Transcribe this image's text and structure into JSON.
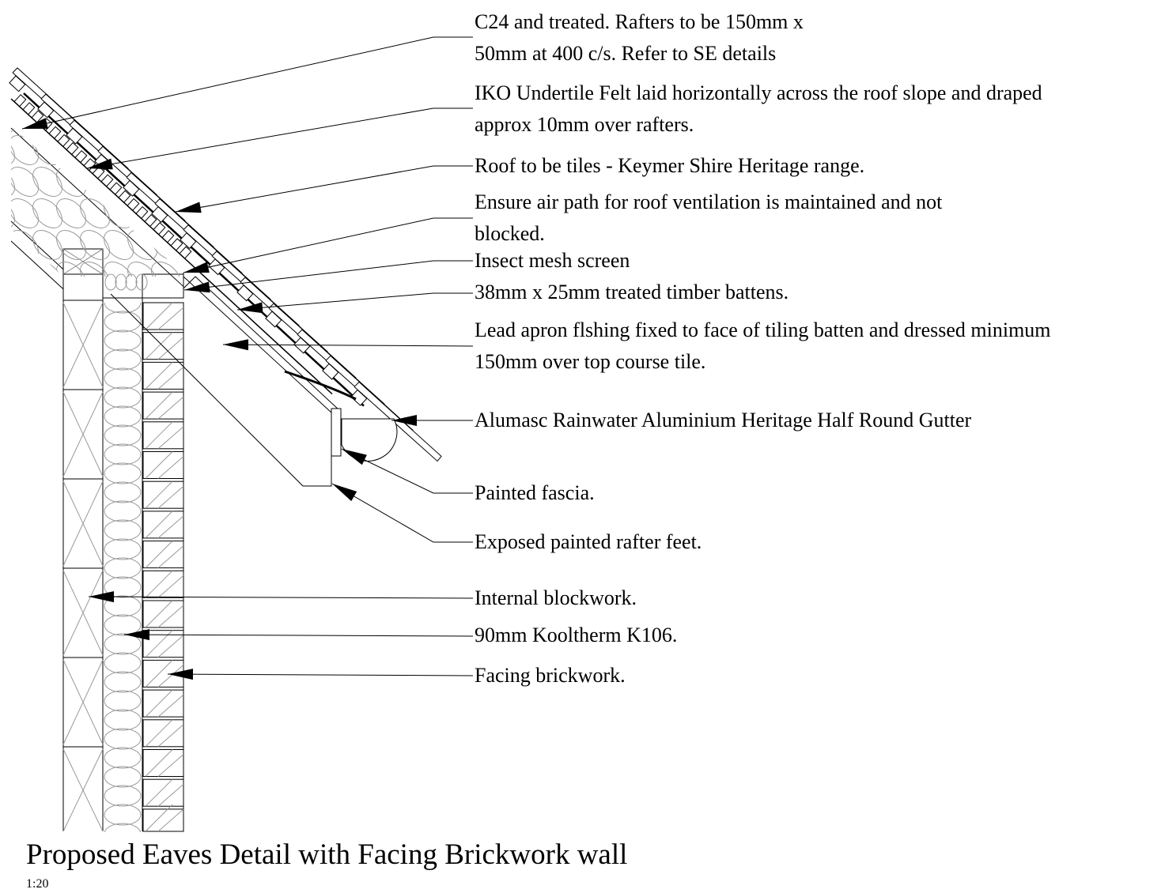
{
  "title": "Proposed Eaves Detail with Facing Brickwork wall",
  "scale": "1:20",
  "annotations": [
    {
      "id": "rafters",
      "lines": [
        "C24 and treated. Rafters to be 150mm x",
        "50mm at 400 c/s. Refer to SE details"
      ]
    },
    {
      "id": "felt",
      "lines": [
        "IKO Undertile Felt laid horizontally across the roof slope and draped",
        "approx 10mm over rafters."
      ]
    },
    {
      "id": "tiles",
      "lines": [
        "Roof to be tiles - Keymer Shire Heritage range."
      ]
    },
    {
      "id": "air-path",
      "lines": [
        "Ensure air path for roof ventilation is maintained and not",
        "blocked."
      ]
    },
    {
      "id": "insect-mesh",
      "lines": [
        "Insect mesh screen"
      ]
    },
    {
      "id": "battens",
      "lines": [
        "38mm x 25mm treated timber battens."
      ]
    },
    {
      "id": "lead-apron",
      "lines": [
        "Lead apron flshing fixed to face of tiling batten and dressed minimum",
        "150mm over top course tile."
      ]
    },
    {
      "id": "gutter",
      "lines": [
        "Alumasc Rainwater Aluminium Heritage Half Round Gutter"
      ]
    },
    {
      "id": "fascia",
      "lines": [
        "Painted fascia."
      ]
    },
    {
      "id": "rafter-feet",
      "lines": [
        "Exposed painted rafter feet."
      ]
    },
    {
      "id": "blockwork",
      "lines": [
        "Internal blockwork."
      ]
    },
    {
      "id": "insulation",
      "lines": [
        "90mm Kooltherm K106."
      ]
    },
    {
      "id": "brickwork",
      "lines": [
        "Facing brickwork."
      ]
    }
  ]
}
